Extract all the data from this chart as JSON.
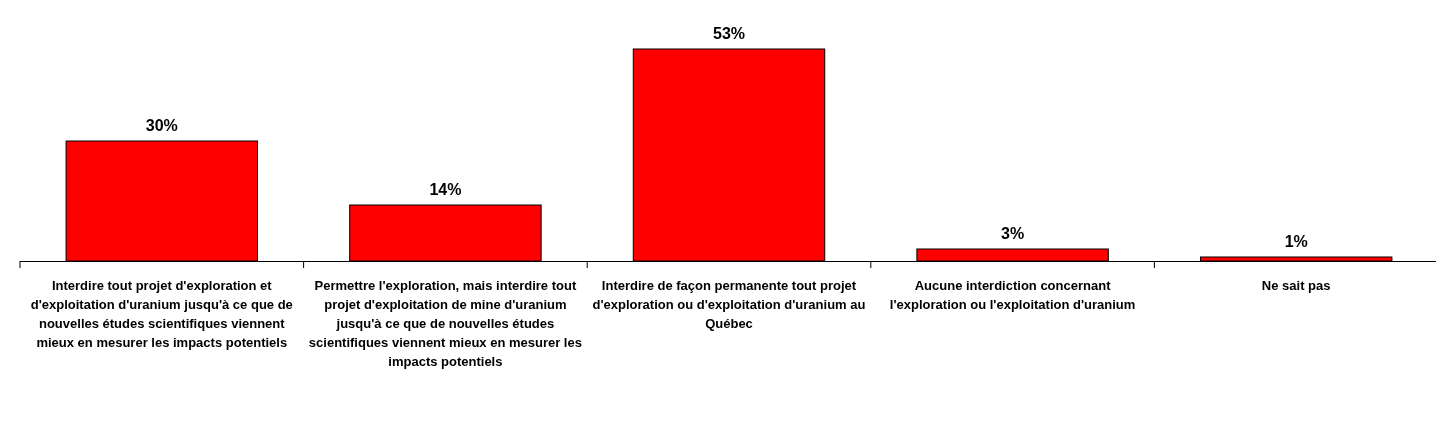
{
  "chart_data": {
    "type": "bar",
    "categories": [
      "Interdire tout projet d'exploration et d'exploitation d'uranium jusqu'à ce que de nouvelles études scientifiques viennent mieux en mesurer les impacts potentiels",
      "Permettre l'exploration, mais interdire tout projet d'exploitation de mine d'uranium jusqu'à ce que de nouvelles études scientifiques viennent mieux en mesurer les impacts potentiels",
      "Interdire de façon permanente tout projet d'exploration ou d'exploitation d'uranium au Québec",
      "Aucune interdiction concernant l'exploration ou l'exploitation d'uranium",
      "Ne sait pas"
    ],
    "values": [
      30,
      14,
      53,
      3,
      1
    ],
    "value_labels": [
      "30%",
      "14%",
      "53%",
      "3%",
      "1%"
    ],
    "color": "#ff0000"
  }
}
